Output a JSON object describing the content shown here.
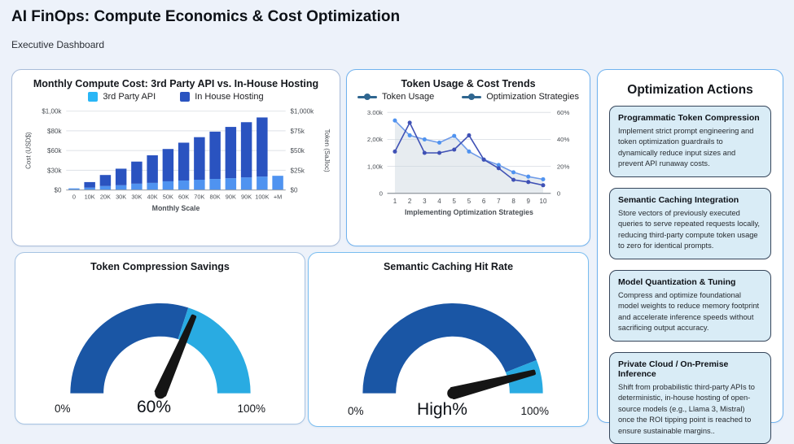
{
  "header": {
    "title": "AI FinOps: Compute Economics & Cost Optimization",
    "subtitle": "Executive Dashboard"
  },
  "chart_data": [
    {
      "id": "compute_cost",
      "type": "bar",
      "stacked": true,
      "title": "Monthly Compute Cost: 3rd Party API vs. In-House Hosting",
      "categories": [
        "0",
        "10K",
        "20K",
        "30K",
        "30K",
        "40K",
        "50K",
        "60K",
        "70K",
        "80K",
        "90K",
        "90K",
        "100K",
        "+M"
      ],
      "series": [
        {
          "name": "3rd Party API",
          "color": "#29b6f6",
          "bar_color": "#4f93f0",
          "values": [
            2,
            3,
            5,
            6,
            8,
            9,
            11,
            12,
            13,
            14,
            15,
            16,
            17,
            18
          ]
        },
        {
          "name": "In House Hosting",
          "color": "#2a53c0",
          "bar_color": "#2a53c0",
          "values": [
            0,
            7,
            14,
            21,
            28,
            35,
            41,
            48,
            54,
            60,
            65,
            70,
            75,
            0
          ]
        }
      ],
      "xlabel": "Monthly Scale",
      "ylabel_left": "Cost (USD$)",
      "ylabel_right": "Token (SaJloc)",
      "yticks_left": [
        "$1,00k",
        "$80k",
        "$60k",
        "$30k",
        "$0"
      ],
      "yticks_right": [
        "$1,000k",
        "$75k",
        "$50k",
        "$25k",
        "$0"
      ],
      "ylim": [
        0,
        100
      ],
      "grid": true,
      "legend_position": "top"
    },
    {
      "id": "token_trends",
      "type": "line",
      "title": "Token Usage & Cost Trends",
      "x": [
        "1",
        "2",
        "3",
        "4",
        "5",
        "5",
        "6",
        "7",
        "8",
        "9",
        "10"
      ],
      "series": [
        {
          "name": "Token Usage",
          "color": "#6f9be8",
          "marker": "#4f93f0",
          "area": true,
          "values": [
            2.7,
            2.15,
            2.0,
            1.88,
            2.13,
            1.55,
            1.25,
            1.05,
            0.78,
            0.62,
            0.52
          ]
        },
        {
          "name": "Optimization Strategies",
          "color": "#3f51b5",
          "marker": "#3f51b5",
          "values": [
            1.55,
            2.62,
            1.5,
            1.5,
            1.62,
            2.15,
            1.25,
            0.93,
            0.5,
            0.42,
            0.3
          ]
        }
      ],
      "legend_marker_color": "#2f6690",
      "area_fill_color": "#c9d4de",
      "xlabel": "Implementing Optimization Strategies",
      "yticks_left": [
        "3.00k",
        "2,00k",
        "1,00k",
        "0"
      ],
      "yticks_right": [
        "60%",
        "40%",
        "20%",
        "0"
      ],
      "ylim": [
        0,
        3
      ],
      "grid": true,
      "legend_position": "top"
    },
    {
      "id": "gauge_compression",
      "type": "gauge",
      "title": "Token Compression Savings",
      "min_label": "0%",
      "value_label": "60%",
      "max_label": "100%",
      "split_fraction": 0.6,
      "needle_fraction": 0.63,
      "color_low": "#1a56a5",
      "color_high": "#29abe2",
      "needle_color": "#151515"
    },
    {
      "id": "gauge_caching",
      "type": "gauge",
      "title": "Semantic Caching Hit Rate",
      "min_label": "0%",
      "value_label": "High%",
      "max_label": "100%",
      "split_fraction": 0.88,
      "needle_fraction": 0.92,
      "color_low": "#1a56a5",
      "color_high": "#29abe2",
      "needle_color": "#151515"
    }
  ],
  "actions": {
    "title": "Optimization Actions",
    "cards": [
      {
        "title": "Programmatic Token Compression",
        "body": "Implement strict prompt engineering and token optimization guardrails to dynamically reduce input sizes and prevent API runaway costs."
      },
      {
        "title": "Semantic Caching Integration",
        "body": "Store vectors of previously executed queries to serve repeated requests locally, reducing third-party compute token usage to zero for identical prompts."
      },
      {
        "title": "Model Quantization & Tuning",
        "body": "Compress and optimize foundational model weights to reduce memory footprint and accelerate inference speeds without sacrificing output accuracy."
      },
      {
        "title": "Private Cloud / On-Premise Inference",
        "body": "Shift from probabilistic third-party APIs to deterministic, in-house hosting of open-source models (e.g., Llama 3, Mistral) once the ROI tipping point is reached to ensure sustainable margins.."
      }
    ]
  }
}
